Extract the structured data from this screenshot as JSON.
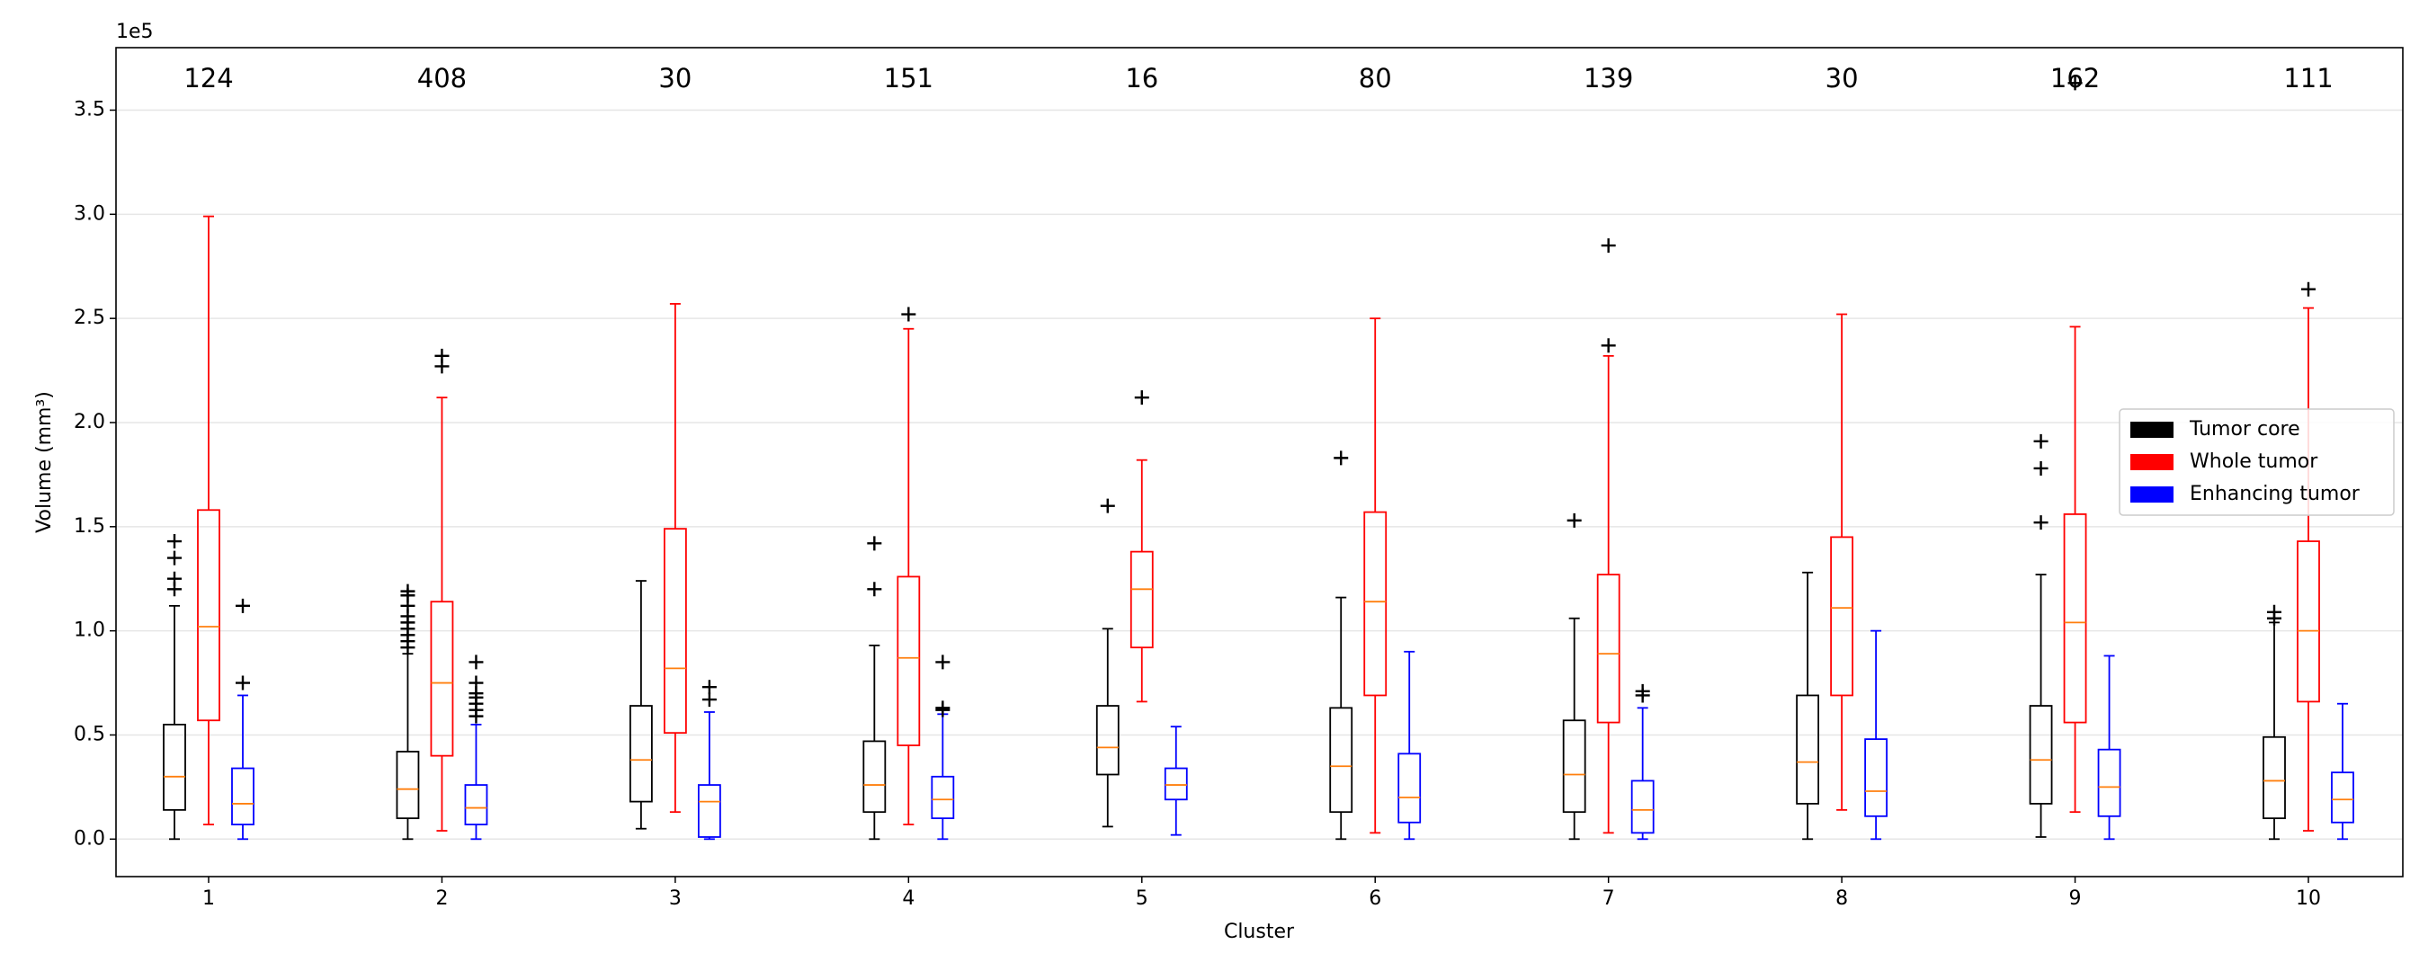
{
  "chart_data": {
    "type": "box",
    "xlabel": "Cluster",
    "ylabel": "Volume (mm³)",
    "y_offset_label": "1e5",
    "categories": [
      "1",
      "2",
      "3",
      "4",
      "5",
      "6",
      "7",
      "8",
      "9",
      "10"
    ],
    "counts": [
      124,
      408,
      30,
      151,
      16,
      80,
      139,
      30,
      162,
      111
    ],
    "count_color": "#008000",
    "median_color": "#ff7f0e",
    "flier_color": "#000000",
    "ylim": [
      -0.18,
      3.8
    ],
    "yticks": [
      {
        "value": 0,
        "label": "0.0"
      },
      {
        "value": 0.5,
        "label": "0.5"
      },
      {
        "value": 1,
        "label": "1.0"
      },
      {
        "value": 1.5,
        "label": "1.5"
      },
      {
        "value": 2,
        "label": "2.0"
      },
      {
        "value": 2.5,
        "label": "2.5"
      },
      {
        "value": 3,
        "label": "3.0"
      },
      {
        "value": 3.5,
        "label": "3.5"
      }
    ],
    "grid": true,
    "legend": "center right",
    "series": [
      {
        "name": "Tumor core",
        "color": "#000000",
        "boxes": [
          {
            "whislo": 0,
            "q1": 0.14,
            "med": 0.3,
            "q3": 0.55,
            "whishi": 1.12,
            "fliers": [
              1.2,
              1.25,
              1.35,
              1.43
            ]
          },
          {
            "whislo": 0,
            "q1": 0.1,
            "med": 0.24,
            "q3": 0.42,
            "whishi": 0.89,
            "fliers": [
              0.92,
              0.95,
              0.98,
              1.01,
              1.04,
              1.07,
              1.12,
              1.17,
              1.19
            ]
          },
          {
            "whislo": 0.05,
            "q1": 0.18,
            "med": 0.38,
            "q3": 0.64,
            "whishi": 1.24,
            "fliers": []
          },
          {
            "whislo": 0,
            "q1": 0.13,
            "med": 0.26,
            "q3": 0.47,
            "whishi": 0.93,
            "fliers": [
              1.2,
              1.42
            ]
          },
          {
            "whislo": 0.06,
            "q1": 0.31,
            "med": 0.44,
            "q3": 0.64,
            "whishi": 1.01,
            "fliers": [
              1.6
            ]
          },
          {
            "whislo": 0,
            "q1": 0.13,
            "med": 0.35,
            "q3": 0.63,
            "whishi": 1.16,
            "fliers": [
              1.83
            ]
          },
          {
            "whislo": 0,
            "q1": 0.13,
            "med": 0.31,
            "q3": 0.57,
            "whishi": 1.06,
            "fliers": [
              1.53
            ]
          },
          {
            "whislo": 0,
            "q1": 0.17,
            "med": 0.37,
            "q3": 0.69,
            "whishi": 1.28,
            "fliers": []
          },
          {
            "whislo": 0.01,
            "q1": 0.17,
            "med": 0.38,
            "q3": 0.64,
            "whishi": 1.27,
            "fliers": [
              1.52,
              1.78,
              1.91
            ]
          },
          {
            "whislo": 0,
            "q1": 0.1,
            "med": 0.28,
            "q3": 0.49,
            "whishi": 1.04,
            "fliers": [
              1.06,
              1.09
            ]
          }
        ]
      },
      {
        "name": "Whole tumor",
        "color": "#ff0000",
        "boxes": [
          {
            "whislo": 0.07,
            "q1": 0.57,
            "med": 1.02,
            "q3": 1.58,
            "whishi": 2.99,
            "fliers": []
          },
          {
            "whislo": 0.04,
            "q1": 0.4,
            "med": 0.75,
            "q3": 1.14,
            "whishi": 2.12,
            "fliers": [
              2.27,
              2.32
            ]
          },
          {
            "whislo": 0.13,
            "q1": 0.51,
            "med": 0.82,
            "q3": 1.49,
            "whishi": 2.57,
            "fliers": []
          },
          {
            "whislo": 0.07,
            "q1": 0.45,
            "med": 0.87,
            "q3": 1.26,
            "whishi": 2.45,
            "fliers": [
              2.52
            ]
          },
          {
            "whislo": 0.66,
            "q1": 0.92,
            "med": 1.2,
            "q3": 1.38,
            "whishi": 1.82,
            "fliers": [
              2.12
            ]
          },
          {
            "whislo": 0.03,
            "q1": 0.69,
            "med": 1.14,
            "q3": 1.57,
            "whishi": 2.5,
            "fliers": []
          },
          {
            "whislo": 0.03,
            "q1": 0.56,
            "med": 0.89,
            "q3": 1.27,
            "whishi": 2.32,
            "fliers": [
              2.37,
              2.85
            ]
          },
          {
            "whislo": 0.14,
            "q1": 0.69,
            "med": 1.11,
            "q3": 1.45,
            "whishi": 2.52,
            "fliers": []
          },
          {
            "whislo": 0.13,
            "q1": 0.56,
            "med": 1.04,
            "q3": 1.56,
            "whishi": 2.46,
            "fliers": [
              3.63
            ]
          },
          {
            "whislo": 0.04,
            "q1": 0.66,
            "med": 1.0,
            "q3": 1.43,
            "whishi": 2.55,
            "fliers": [
              2.64
            ]
          }
        ]
      },
      {
        "name": "Enhancing tumor",
        "color": "#0000ff",
        "boxes": [
          {
            "whislo": 0,
            "q1": 0.07,
            "med": 0.17,
            "q3": 0.34,
            "whishi": 0.69,
            "fliers": [
              0.75,
              1.12
            ]
          },
          {
            "whislo": 0,
            "q1": 0.07,
            "med": 0.15,
            "q3": 0.26,
            "whishi": 0.55,
            "fliers": [
              0.59,
              0.62,
              0.65,
              0.68,
              0.7,
              0.75,
              0.85
            ]
          },
          {
            "whislo": 0,
            "q1": 0.01,
            "med": 0.18,
            "q3": 0.26,
            "whishi": 0.61,
            "fliers": [
              0.67,
              0.73
            ]
          },
          {
            "whislo": 0,
            "q1": 0.1,
            "med": 0.19,
            "q3": 0.3,
            "whishi": 0.6,
            "fliers": [
              0.62,
              0.63,
              0.85
            ]
          },
          {
            "whislo": 0.02,
            "q1": 0.19,
            "med": 0.26,
            "q3": 0.34,
            "whishi": 0.54,
            "fliers": []
          },
          {
            "whislo": 0,
            "q1": 0.08,
            "med": 0.2,
            "q3": 0.41,
            "whishi": 0.9,
            "fliers": []
          },
          {
            "whislo": 0,
            "q1": 0.03,
            "med": 0.14,
            "q3": 0.28,
            "whishi": 0.63,
            "fliers": [
              0.69,
              0.71
            ]
          },
          {
            "whislo": 0,
            "q1": 0.11,
            "med": 0.23,
            "q3": 0.48,
            "whishi": 1.0,
            "fliers": []
          },
          {
            "whislo": 0,
            "q1": 0.11,
            "med": 0.25,
            "q3": 0.43,
            "whishi": 0.88,
            "fliers": []
          },
          {
            "whislo": 0,
            "q1": 0.08,
            "med": 0.19,
            "q3": 0.32,
            "whishi": 0.65,
            "fliers": []
          }
        ]
      }
    ]
  }
}
